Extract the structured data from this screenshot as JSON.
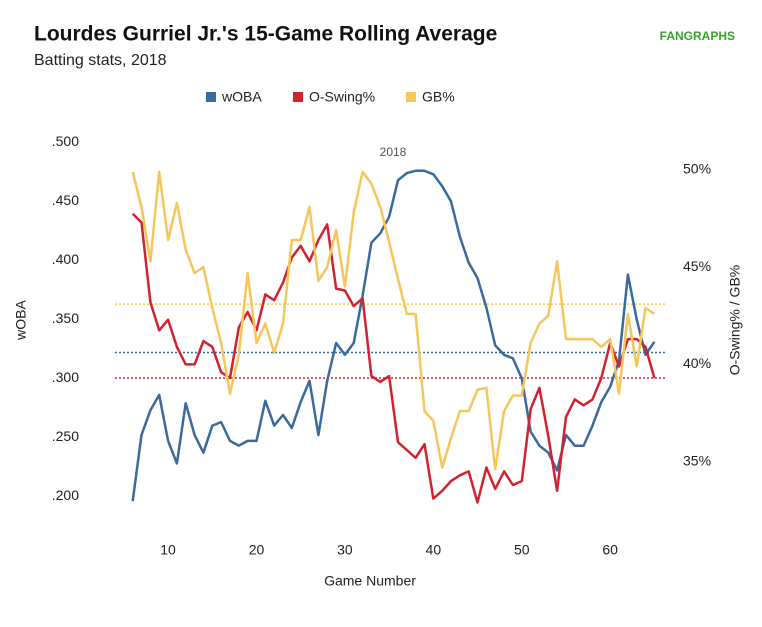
{
  "chart_data": {
    "type": "line",
    "title": "Lourdes Gurriel Jr.'s 15-Game Rolling Average",
    "subtitle": "Batting stats, 2018",
    "logo": "FANGRAPHS",
    "annotation": "2018",
    "x_label": "Game Number",
    "y_label": "wOBA",
    "y2_label": "O-Swing% / GB%",
    "xlim": [
      4,
      66.2
    ],
    "xticks": [
      10,
      20,
      30,
      40,
      50,
      60
    ],
    "ylim": [
      0.18,
      0.508
    ],
    "yticks": [
      {
        "value": 0.2,
        "label": ".200"
      },
      {
        "value": 0.25,
        "label": ".250"
      },
      {
        "value": 0.3,
        "label": ".300"
      },
      {
        "value": 0.35,
        "label": ".350"
      },
      {
        "value": 0.4,
        "label": ".400"
      },
      {
        "value": 0.45,
        "label": ".450"
      },
      {
        "value": 0.5,
        "label": ".500"
      }
    ],
    "y2lim": [
      32,
      51.9
    ],
    "y2ticks": [
      {
        "value": 35,
        "label": "35%"
      },
      {
        "value": 40,
        "label": "40%"
      },
      {
        "value": 45,
        "label": "45%"
      },
      {
        "value": 50,
        "label": "50%"
      }
    ],
    "x": [
      6,
      7,
      8,
      9,
      10,
      11,
      12,
      13,
      14,
      15,
      16,
      17,
      18,
      19,
      20,
      21,
      22,
      23,
      24,
      25,
      26,
      27,
      28,
      29,
      30,
      31,
      32,
      33,
      34,
      35,
      36,
      37,
      38,
      39,
      40,
      41,
      42,
      43,
      44,
      45,
      46,
      47,
      48,
      49,
      50,
      51,
      52,
      53,
      54,
      55,
      56,
      57,
      58,
      59,
      60,
      61,
      62,
      63,
      64,
      65
    ],
    "series": [
      {
        "name": "wOBA",
        "color": "#3a6a9c",
        "average": 0.322,
        "values": [
          0.196,
          0.252,
          0.273,
          0.286,
          0.247,
          0.228,
          0.279,
          0.252,
          0.237,
          0.26,
          0.263,
          0.247,
          0.243,
          0.247,
          0.247,
          0.281,
          0.26,
          0.269,
          0.258,
          0.28,
          0.298,
          0.252,
          0.298,
          0.33,
          0.32,
          0.33,
          0.37,
          0.415,
          0.423,
          0.437,
          0.468,
          0.474,
          0.476,
          0.476,
          0.473,
          0.463,
          0.45,
          0.42,
          0.398,
          0.385,
          0.36,
          0.328,
          0.32,
          0.317,
          0.3,
          0.255,
          0.243,
          0.237,
          0.222,
          0.252,
          0.243,
          0.243,
          0.26,
          0.28,
          0.293,
          0.315,
          0.388,
          0.35,
          0.32,
          0.331
        ]
      },
      {
        "name": "O-Swing%",
        "color": "#d1232f",
        "axis": "y2",
        "average": 39.3,
        "values": [
          47.75,
          47.3,
          43.2,
          41.75,
          42.3,
          40.9,
          40.0,
          40.0,
          41.2,
          40.9,
          39.6,
          39.3,
          41.9,
          42.7,
          41.75,
          43.6,
          43.3,
          44.2,
          45.5,
          46.1,
          45.3,
          46.4,
          47.2,
          43.9,
          43.8,
          43.0,
          43.4,
          39.4,
          39.1,
          39.4,
          36.0,
          35.6,
          35.2,
          35.9,
          33.1,
          33.5,
          34.0,
          34.3,
          34.5,
          32.9,
          34.7,
          33.6,
          34.5,
          33.8,
          34.0,
          37.7,
          38.8,
          36.3,
          33.5,
          37.3,
          38.2,
          37.9,
          38.2,
          39.3,
          41.1,
          39.9,
          41.3,
          41.3,
          40.9,
          39.3
        ]
      },
      {
        "name": "GB%",
        "color": "#f6c65b",
        "axis": "y2",
        "average": 43.1,
        "values": [
          49.9,
          48.1,
          45.3,
          49.9,
          46.4,
          48.3,
          45.9,
          44.7,
          45.0,
          42.9,
          41.1,
          38.5,
          40.5,
          44.7,
          41.1,
          42.1,
          40.6,
          42.1,
          46.4,
          46.4,
          48.1,
          44.3,
          45.0,
          46.9,
          44.0,
          47.8,
          49.9,
          49.3,
          48.1,
          46.3,
          44.4,
          42.6,
          42.6,
          37.6,
          37.1,
          34.7,
          36.2,
          37.6,
          37.6,
          38.7,
          38.8,
          34.6,
          37.6,
          38.4,
          38.4,
          41.1,
          42.1,
          42.5,
          45.3,
          41.3,
          41.3,
          41.3,
          41.3,
          40.9,
          41.3,
          38.5,
          42.6,
          39.9,
          42.9,
          42.6
        ]
      }
    ]
  }
}
